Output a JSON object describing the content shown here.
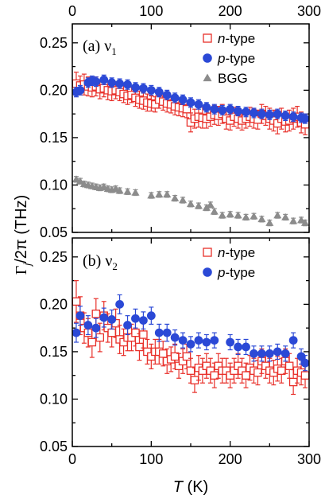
{
  "chart_data": [
    {
      "type": "scatter",
      "panel_label": "(a) ν",
      "panel_sub": "1",
      "xlim": [
        0,
        300
      ],
      "ylim": [
        0.05,
        0.27
      ],
      "xticks": [
        0,
        100,
        200,
        300
      ],
      "yticks": [
        "0.05",
        "0.10",
        "0.15",
        "0.20",
        "0.25"
      ],
      "legend_position": "top-right",
      "series": [
        {
          "name": "n-type",
          "name_italic": "n",
          "name_rest": "-type",
          "marker": "open-square",
          "color": "#e8302a",
          "x": [
            5,
            10,
            15,
            20,
            25,
            30,
            35,
            40,
            45,
            50,
            55,
            60,
            65,
            70,
            75,
            80,
            85,
            90,
            95,
            100,
            105,
            110,
            115,
            120,
            125,
            130,
            135,
            140,
            145,
            150,
            155,
            160,
            165,
            170,
            175,
            180,
            185,
            190,
            195,
            200,
            205,
            210,
            215,
            220,
            225,
            230,
            235,
            240,
            245,
            250,
            255,
            260,
            265,
            270,
            275,
            280,
            285,
            290,
            295
          ],
          "y": [
            0.207,
            0.205,
            0.206,
            0.204,
            0.203,
            0.204,
            0.201,
            0.202,
            0.2,
            0.199,
            0.2,
            0.198,
            0.196,
            0.194,
            0.195,
            0.192,
            0.19,
            0.189,
            0.187,
            0.186,
            0.185,
            0.19,
            0.188,
            0.186,
            0.185,
            0.183,
            0.182,
            0.181,
            0.18,
            0.166,
            0.17,
            0.172,
            0.171,
            0.17,
            0.172,
            0.174,
            0.173,
            0.175,
            0.17,
            0.168,
            0.172,
            0.17,
            0.168,
            0.17,
            0.172,
            0.17,
            0.169,
            0.175,
            0.173,
            0.17,
            0.168,
            0.165,
            0.17,
            0.167,
            0.168,
            0.17,
            0.172,
            0.166,
            0.164
          ],
          "err": [
            0.012,
            0.01,
            0.011,
            0.01,
            0.01,
            0.01,
            0.01,
            0.009,
            0.01,
            0.01,
            0.009,
            0.009,
            0.009,
            0.009,
            0.008,
            0.009,
            0.009,
            0.009,
            0.009,
            0.008,
            0.008,
            0.009,
            0.009,
            0.009,
            0.009,
            0.009,
            0.009,
            0.009,
            0.009,
            0.01,
            0.01,
            0.011,
            0.011,
            0.01,
            0.01,
            0.01,
            0.01,
            0.01,
            0.011,
            0.01,
            0.01,
            0.01,
            0.01,
            0.01,
            0.01,
            0.01,
            0.01,
            0.01,
            0.01,
            0.011,
            0.011,
            0.011,
            0.011,
            0.011,
            0.011,
            0.011,
            0.011,
            0.011,
            0.011
          ]
        },
        {
          "name": "p-type",
          "name_italic": "p",
          "name_rest": "-type",
          "marker": "filled-circle",
          "color": "#2b49d6",
          "x": [
            5,
            10,
            20,
            25,
            30,
            40,
            50,
            60,
            70,
            80,
            90,
            100,
            110,
            120,
            130,
            140,
            150,
            160,
            170,
            180,
            190,
            200,
            210,
            220,
            230,
            240,
            250,
            260,
            270,
            280,
            290,
            295
          ],
          "y": [
            0.198,
            0.2,
            0.208,
            0.21,
            0.209,
            0.211,
            0.208,
            0.207,
            0.206,
            0.203,
            0.202,
            0.2,
            0.198,
            0.195,
            0.192,
            0.19,
            0.187,
            0.185,
            0.182,
            0.18,
            0.179,
            0.18,
            0.178,
            0.177,
            0.176,
            0.175,
            0.174,
            0.175,
            0.173,
            0.172,
            0.171,
            0.17
          ],
          "err": [
            0.005,
            0.005,
            0.005,
            0.005,
            0.005,
            0.005,
            0.005,
            0.005,
            0.005,
            0.005,
            0.005,
            0.005,
            0.005,
            0.005,
            0.005,
            0.005,
            0.005,
            0.005,
            0.005,
            0.005,
            0.005,
            0.005,
            0.005,
            0.005,
            0.005,
            0.005,
            0.005,
            0.005,
            0.005,
            0.005,
            0.005,
            0.005
          ]
        },
        {
          "name": "BGG",
          "marker": "filled-triangle",
          "color": "#8c8c8c",
          "x": [
            5,
            10,
            15,
            20,
            25,
            30,
            35,
            40,
            45,
            50,
            55,
            60,
            70,
            80,
            100,
            110,
            120,
            130,
            140,
            150,
            160,
            170,
            175,
            180,
            190,
            200,
            210,
            220,
            230,
            240,
            250,
            260,
            270,
            280,
            290,
            295
          ],
          "y": [
            0.106,
            0.104,
            0.101,
            0.1,
            0.099,
            0.098,
            0.097,
            0.098,
            0.096,
            0.095,
            0.096,
            0.094,
            0.093,
            0.092,
            0.089,
            0.09,
            0.09,
            0.086,
            0.084,
            0.08,
            0.078,
            0.076,
            0.079,
            0.072,
            0.068,
            0.069,
            0.068,
            0.066,
            0.067,
            0.064,
            0.06,
            0.068,
            0.066,
            0.062,
            0.063,
            0.06
          ],
          "err": [
            0.003,
            0.003,
            0.003,
            0.003,
            0.003,
            0.003,
            0.003,
            0.003,
            0.003,
            0.003,
            0.003,
            0.003,
            0.003,
            0.003,
            0.003,
            0.003,
            0.003,
            0.003,
            0.003,
            0.003,
            0.003,
            0.003,
            0.003,
            0.003,
            0.003,
            0.003,
            0.003,
            0.003,
            0.003,
            0.003,
            0.003,
            0.003,
            0.003,
            0.003,
            0.003,
            0.003
          ]
        }
      ]
    },
    {
      "type": "scatter",
      "panel_label": "(b) ν",
      "panel_sub": "2",
      "xlim": [
        0,
        300
      ],
      "ylim": [
        0.05,
        0.27
      ],
      "xticks": [
        0,
        100,
        200,
        300
      ],
      "yticks": [
        "0.05",
        "0.10",
        "0.15",
        "0.20",
        "0.25"
      ],
      "xlabel_italic": "T",
      "xlabel_rest": " (K)",
      "legend_position": "top-right",
      "series": [
        {
          "name": "n-type",
          "name_italic": "n",
          "name_rest": "-type",
          "marker": "open-square",
          "color": "#e8302a",
          "x": [
            5,
            10,
            15,
            20,
            25,
            30,
            35,
            40,
            45,
            50,
            55,
            60,
            65,
            70,
            75,
            80,
            85,
            90,
            95,
            100,
            105,
            110,
            115,
            120,
            125,
            130,
            135,
            140,
            145,
            150,
            155,
            160,
            165,
            170,
            175,
            180,
            185,
            190,
            195,
            200,
            205,
            210,
            215,
            220,
            225,
            230,
            235,
            240,
            245,
            250,
            255,
            260,
            265,
            270,
            275,
            280,
            285,
            290,
            295
          ],
          "y": [
            0.203,
            0.188,
            0.175,
            0.17,
            0.16,
            0.19,
            0.165,
            0.188,
            0.175,
            0.17,
            0.18,
            0.163,
            0.16,
            0.165,
            0.165,
            0.17,
            0.155,
            0.168,
            0.15,
            0.145,
            0.15,
            0.15,
            0.148,
            0.14,
            0.142,
            0.145,
            0.135,
            0.14,
            0.145,
            0.13,
            0.12,
            0.133,
            0.13,
            0.135,
            0.13,
            0.125,
            0.135,
            0.13,
            0.13,
            0.125,
            0.13,
            0.135,
            0.13,
            0.125,
            0.133,
            0.13,
            0.128,
            0.14,
            0.135,
            0.13,
            0.128,
            0.132,
            0.13,
            0.14,
            0.135,
            0.118,
            0.13,
            0.128,
            0.125
          ],
          "err": [
            0.022,
            0.02,
            0.016,
            0.015,
            0.016,
            0.016,
            0.015,
            0.015,
            0.015,
            0.015,
            0.015,
            0.015,
            0.014,
            0.014,
            0.014,
            0.014,
            0.014,
            0.014,
            0.013,
            0.013,
            0.013,
            0.013,
            0.013,
            0.013,
            0.013,
            0.013,
            0.013,
            0.013,
            0.013,
            0.013,
            0.013,
            0.013,
            0.013,
            0.013,
            0.013,
            0.013,
            0.013,
            0.013,
            0.013,
            0.013,
            0.013,
            0.013,
            0.013,
            0.013,
            0.013,
            0.013,
            0.013,
            0.013,
            0.013,
            0.013,
            0.013,
            0.013,
            0.013,
            0.013,
            0.013,
            0.013,
            0.013,
            0.013,
            0.013
          ]
        },
        {
          "name": "p-type",
          "name_italic": "p",
          "name_rest": "-type",
          "marker": "filled-circle",
          "color": "#2b49d6",
          "x": [
            5,
            10,
            20,
            30,
            40,
            50,
            60,
            70,
            80,
            90,
            100,
            110,
            120,
            130,
            140,
            150,
            160,
            170,
            180,
            200,
            210,
            220,
            230,
            240,
            250,
            260,
            270,
            280,
            290,
            295
          ],
          "y": [
            0.17,
            0.188,
            0.178,
            0.175,
            0.186,
            0.184,
            0.2,
            0.178,
            0.185,
            0.183,
            0.188,
            0.17,
            0.17,
            0.165,
            0.162,
            0.158,
            0.162,
            0.16,
            0.162,
            0.16,
            0.155,
            0.155,
            0.148,
            0.148,
            0.148,
            0.15,
            0.148,
            0.162,
            0.145,
            0.138
          ],
          "err": [
            0.01,
            0.01,
            0.01,
            0.01,
            0.01,
            0.01,
            0.01,
            0.01,
            0.01,
            0.009,
            0.009,
            0.009,
            0.009,
            0.008,
            0.008,
            0.008,
            0.008,
            0.008,
            0.008,
            0.008,
            0.008,
            0.008,
            0.008,
            0.008,
            0.008,
            0.008,
            0.008,
            0.008,
            0.008,
            0.008
          ]
        }
      ]
    }
  ],
  "shared": {
    "ylabel_gamma": "Γ",
    "ylabel_sub": "j",
    "ylabel_rest": "/2π (THz)"
  }
}
